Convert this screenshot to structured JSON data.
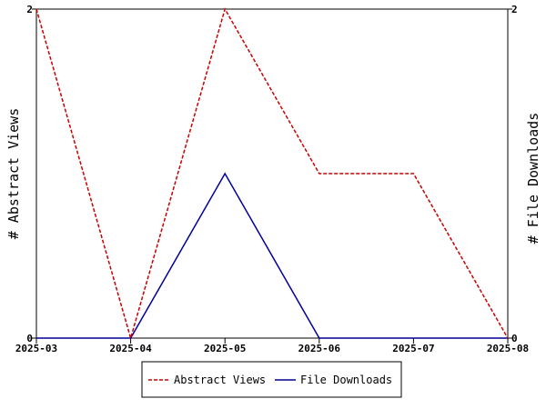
{
  "chart_data": {
    "type": "line",
    "title": "",
    "categories": [
      "2025-03",
      "2025-04",
      "2025-05",
      "2025-06",
      "2025-07",
      "2025-08"
    ],
    "y_left": {
      "label": "# Abstract Views",
      "range": [
        0,
        2
      ],
      "ticks": [
        "0",
        "2"
      ]
    },
    "y_right": {
      "label": "# File Downloads",
      "range": [
        0,
        2
      ],
      "ticks": [
        "0",
        "2"
      ]
    },
    "series": [
      {
        "name": "Abstract Views",
        "axis": "left",
        "values": [
          2,
          0,
          2,
          1,
          1,
          0
        ],
        "color": "#cc0000",
        "dashed": true
      },
      {
        "name": "File Downloads",
        "axis": "right",
        "values": [
          0,
          0,
          1,
          0,
          0,
          0
        ],
        "color": "#000099",
        "dashed": false
      }
    ],
    "legend": "bottom",
    "grid": false
  }
}
